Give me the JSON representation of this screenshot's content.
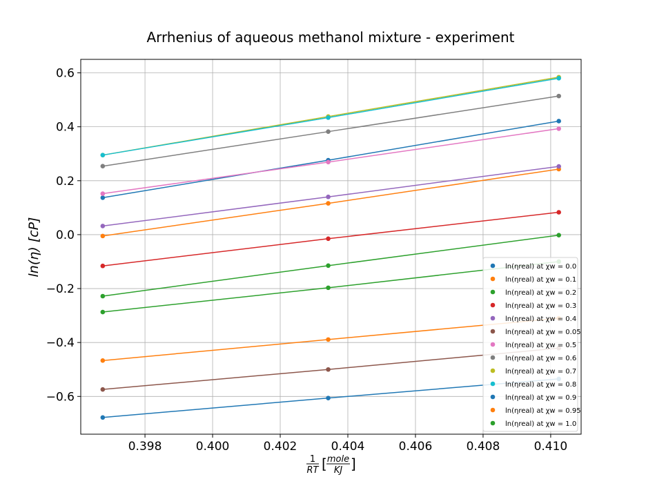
{
  "chart_data": {
    "type": "line",
    "title": "Arrhenius of aqueous methanol mixture - experiment",
    "xlabel_num": "1",
    "xlabel_den": "RT",
    "xlabel_unit_num": "mole",
    "xlabel_unit_den": "KJ",
    "ylabel": "ln(η)  [cP]",
    "xlim": [
      0.3961,
      0.4109
    ],
    "ylim": [
      -0.74,
      0.65
    ],
    "xticks": [
      0.398,
      0.4,
      0.402,
      0.404,
      0.406,
      0.408,
      0.41
    ],
    "xtick_labels": [
      "0.398",
      "0.400",
      "0.402",
      "0.404",
      "0.406",
      "0.408",
      "0.410"
    ],
    "yticks": [
      -0.6,
      -0.4,
      -0.2,
      0.0,
      0.2,
      0.4,
      0.6
    ],
    "ytick_labels": [
      "−0.6",
      "−0.4",
      "−0.2",
      "0.0",
      "0.2",
      "0.4",
      "0.6"
    ],
    "grid": true,
    "legend_position": "lower-right",
    "x": [
      0.39675,
      0.40342,
      0.41024
    ],
    "series": [
      {
        "name": "ln(η_real) at χ_w = 0.0",
        "legend_label": "ln(ηreal) at χw = 0.0",
        "color": "#1f77b4",
        "values": [
          0.137,
          0.276,
          0.421
        ]
      },
      {
        "name": "ln(η_real) at χ_w = 0.1",
        "legend_label": "ln(ηreal) at χw = 0.1",
        "color": "#ff7f0e",
        "values": [
          -0.005,
          0.116,
          0.243
        ]
      },
      {
        "name": "ln(η_real) at χ_w = 0.2",
        "legend_label": "ln(ηreal) at χw = 0.2",
        "color": "#2ca02c",
        "values": [
          -0.228,
          -0.115,
          -0.002
        ]
      },
      {
        "name": "ln(η_real) at χ_w = 0.3",
        "legend_label": "ln(ηreal) at χw = 0.3",
        "color": "#d62728",
        "values": [
          -0.116,
          -0.015,
          0.083
        ]
      },
      {
        "name": "ln(η_real) at χ_w = 0.4",
        "legend_label": "ln(ηreal) at χw = 0.4",
        "color": "#9467bd",
        "values": [
          0.032,
          0.14,
          0.253
        ]
      },
      {
        "name": "ln(η_real) at χ_w = 0.05",
        "legend_label": "ln(ηreal) at χw = 0.05",
        "color": "#8c564b",
        "values": [
          -0.574,
          -0.5,
          -0.421
        ]
      },
      {
        "name": "ln(η_real) at χ_w = 0.5",
        "legend_label": "ln(ηreal) at χw = 0.5",
        "color": "#e377c2",
        "values": [
          0.152,
          0.269,
          0.393
        ]
      },
      {
        "name": "ln(η_real) at χ_w = 0.6",
        "legend_label": "ln(ηreal) at χw = 0.6",
        "color": "#7f7f7f",
        "values": [
          0.254,
          0.382,
          0.514
        ]
      },
      {
        "name": "ln(η_real) at χ_w = 0.7",
        "legend_label": "ln(ηreal) at χw = 0.7",
        "color": "#bcbd22",
        "values": [
          0.295,
          0.438,
          0.584
        ]
      },
      {
        "name": "ln(η_real) at χ_w = 0.8",
        "legend_label": "ln(ηreal) at χw = 0.8",
        "color": "#17becf",
        "values": [
          0.295,
          0.434,
          0.58
        ]
      },
      {
        "name": "ln(η_real) at χ_w = 0.9",
        "legend_label": "ln(ηreal) at χw = 0.9",
        "color": "#1f77b4",
        "values": [
          -0.678,
          -0.606,
          -0.535
        ]
      },
      {
        "name": "ln(η_real) at χ_w = 0.95",
        "legend_label": "ln(ηreal) at χw = 0.95",
        "color": "#ff7f0e",
        "values": [
          -0.467,
          -0.389,
          -0.31
        ]
      },
      {
        "name": "ln(η_real) at χ_w = 1.0",
        "legend_label": "ln(ηreal) at χw = 1.0",
        "color": "#2ca02c",
        "values": [
          -0.287,
          -0.197,
          -0.1
        ]
      }
    ]
  }
}
